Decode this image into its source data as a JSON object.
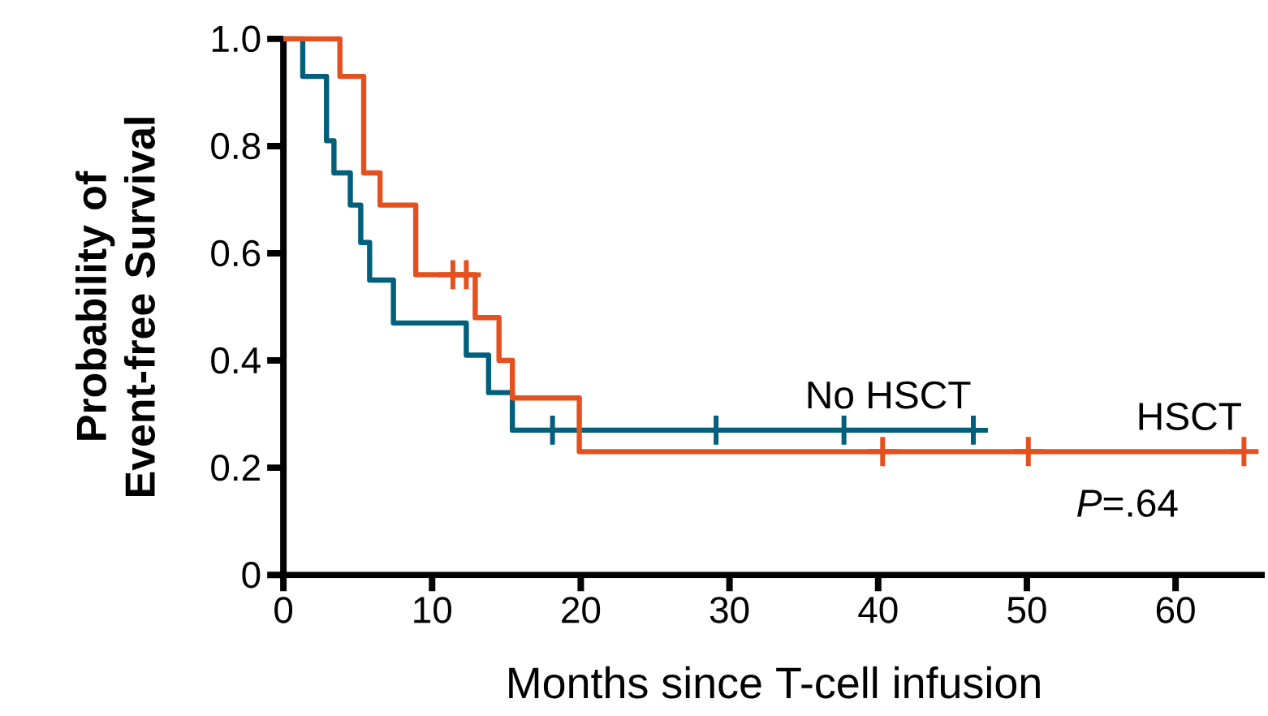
{
  "chart_data": {
    "type": "step",
    "xlabel": "Months since T-cell infusion",
    "ylabel": "Probability of Event-free Survival",
    "xlim": [
      0,
      66
    ],
    "ylim": [
      0,
      1
    ],
    "xticks": [
      0,
      10,
      20,
      30,
      40,
      50,
      60
    ],
    "yticks": [
      0,
      0.2,
      0.4,
      0.6,
      0.8,
      {
        "value": 1,
        "label": "1.0"
      }
    ],
    "grid": false,
    "legend": false,
    "series": [
      {
        "name": "No HSCT",
        "type": "step",
        "color": "#005f7a",
        "marker": "none",
        "x": [
          0,
          1.3,
          2.9,
          3.4,
          4.5,
          5.2,
          5.8,
          7.4,
          12.3,
          13.8,
          15.4,
          46.4
        ],
        "values": [
          1,
          0.93,
          0.81,
          0.75,
          0.69,
          0.62,
          0.55,
          0.47,
          0.41,
          0.34,
          0.27,
          0.27
        ]
      },
      {
        "name": "HSCT",
        "type": "step",
        "color": "#e5501f",
        "marker": "none",
        "x": [
          0,
          3.8,
          5.4,
          6.5,
          8.9,
          12.9,
          14.5,
          15.4,
          19.9,
          64.6
        ],
        "values": [
          1,
          0.93,
          0.75,
          0.69,
          0.56,
          0.48,
          0.4,
          0.33,
          0.23,
          0.23
        ]
      },
      {
        "type": "scatter",
        "color": "#005f7a",
        "marker": "cross",
        "x": [
          18.1,
          29.1,
          37.7,
          46.4
        ],
        "values": [
          0.27,
          0.27,
          0.27,
          0.27
        ]
      },
      {
        "type": "scatter",
        "color": "#e5501f",
        "marker": "cross",
        "x": [
          11.4,
          12.3,
          40.3,
          50.1,
          64.6
        ],
        "values": [
          0.56,
          0.56,
          0.23,
          0.23,
          0.23
        ]
      }
    ],
    "annotations": [
      "*P*=.64"
    ]
  }
}
